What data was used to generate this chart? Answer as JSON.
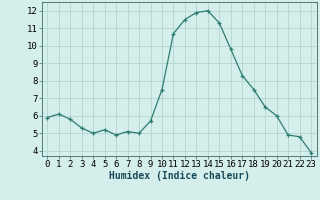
{
  "x": [
    0,
    1,
    2,
    3,
    4,
    5,
    6,
    7,
    8,
    9,
    10,
    11,
    12,
    13,
    14,
    15,
    16,
    17,
    18,
    19,
    20,
    21,
    22,
    23
  ],
  "y": [
    5.9,
    6.1,
    5.8,
    5.3,
    5.0,
    5.2,
    4.9,
    5.1,
    5.0,
    5.7,
    7.5,
    10.7,
    11.5,
    11.9,
    12.0,
    11.3,
    9.8,
    8.3,
    7.5,
    6.5,
    6.0,
    4.9,
    4.8,
    3.9
  ],
  "line_color": "#2e7d6e",
  "marker": "+",
  "marker_size": 3,
  "bg_color": "#d4eeeb",
  "grid_color": "#b0d0cc",
  "xlabel": "Humidex (Indice chaleur)",
  "xlim": [
    -0.5,
    23.5
  ],
  "ylim": [
    3.7,
    12.5
  ],
  "yticks": [
    4,
    5,
    6,
    7,
    8,
    9,
    10,
    11,
    12
  ],
  "xticks": [
    0,
    1,
    2,
    3,
    4,
    5,
    6,
    7,
    8,
    9,
    10,
    11,
    12,
    13,
    14,
    15,
    16,
    17,
    18,
    19,
    20,
    21,
    22,
    23
  ],
  "xlabel_fontsize": 7,
  "tick_fontsize": 6.5,
  "line_width": 0.9,
  "marker_edge_width": 0.9
}
